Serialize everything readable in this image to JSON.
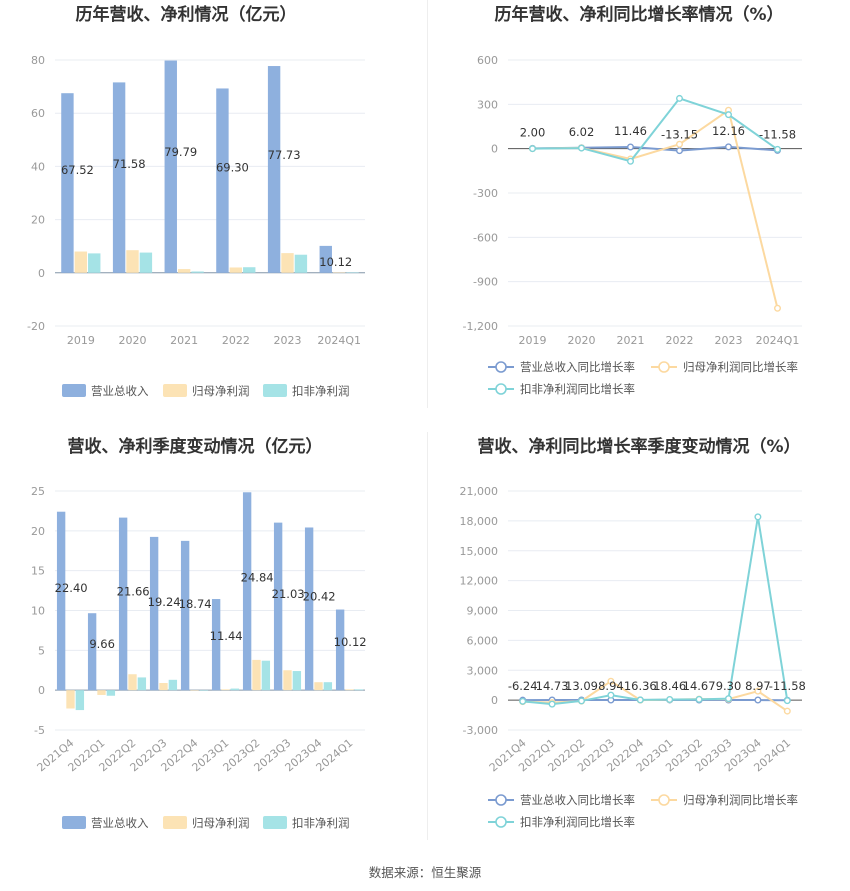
{
  "colors": {
    "revenue": "#8eb0de",
    "net_profit": "#fce3b5",
    "deducted_profit": "#a5e3e6",
    "line_revenue": "#7b9bd0",
    "line_net": "#fcd9a0",
    "line_deducted": "#7fd3d8"
  },
  "chart_data": [
    {
      "type": "bar",
      "title": "历年营收、净利情况（亿元）",
      "categories": [
        "2019",
        "2020",
        "2021",
        "2022",
        "2023",
        "2024Q1"
      ],
      "yticks": [
        "80",
        "60",
        "40",
        "20",
        "0",
        "-20"
      ],
      "ylim": [
        -20,
        80
      ],
      "series": [
        {
          "name": "营业总收入",
          "values": [
            67.52,
            71.58,
            79.79,
            69.3,
            77.73,
            10.12
          ],
          "labels": [
            "67.52",
            "71.58",
            "79.79",
            "69.30",
            "77.73",
            "10.12"
          ]
        },
        {
          "name": "归母净利润",
          "values": [
            8.0,
            8.5,
            1.4,
            2.0,
            7.4,
            0.1
          ]
        },
        {
          "name": "扣非净利润",
          "values": [
            7.3,
            7.6,
            0.5,
            2.1,
            6.8,
            0.1
          ]
        }
      ],
      "legend": "bottom"
    },
    {
      "type": "line",
      "title": "历年营收、净利同比增长率情况（%）",
      "categories": [
        "2019",
        "2020",
        "2021",
        "2022",
        "2023",
        "2024Q1"
      ],
      "yticks": [
        "600",
        "300",
        "0",
        "-300",
        "-600",
        "-900",
        "-1,200"
      ],
      "ylim": [
        -1200,
        600
      ],
      "series": [
        {
          "name": "营业总收入同比增长率",
          "values": [
            2.0,
            6.02,
            11.46,
            -13.15,
            12.16,
            -11.58
          ],
          "labels": [
            "2.00",
            "6.02",
            "11.46",
            "-13.15",
            "12.16",
            "-11.58"
          ]
        },
        {
          "name": "归母净利润同比增长率",
          "values": [
            0,
            5,
            -70,
            30,
            260,
            -1080
          ]
        },
        {
          "name": "扣非净利润同比增长率",
          "values": [
            0,
            4,
            -85,
            340,
            230,
            -5
          ]
        }
      ],
      "legend": "bottom"
    },
    {
      "type": "bar",
      "title": "营收、净利季度变动情况（亿元）",
      "categories": [
        "2021Q4",
        "2022Q1",
        "2022Q2",
        "2022Q3",
        "2022Q4",
        "2023Q1",
        "2023Q2",
        "2023Q3",
        "2023Q4",
        "2024Q1"
      ],
      "yticks": [
        "25",
        "20",
        "15",
        "10",
        "5",
        "0",
        "-5"
      ],
      "ylim": [
        -5,
        25
      ],
      "series": [
        {
          "name": "营业总收入",
          "values": [
            22.4,
            9.66,
            21.66,
            19.24,
            18.74,
            11.44,
            24.84,
            21.03,
            20.42,
            10.12
          ],
          "labels": [
            "22.40",
            "9.66",
            "21.66",
            "19.24",
            "18.74",
            "11.44",
            "24.84",
            "21.03",
            "20.42",
            "10.12"
          ]
        },
        {
          "name": "归母净利润",
          "values": [
            -2.3,
            -0.6,
            2.0,
            0.9,
            0.0,
            0.1,
            3.8,
            2.5,
            1.0,
            0.1
          ]
        },
        {
          "name": "扣非净利润",
          "values": [
            -2.5,
            -0.7,
            1.6,
            1.3,
            0.0,
            0.2,
            3.7,
            2.4,
            1.0,
            0.1
          ]
        }
      ],
      "legend": "bottom"
    },
    {
      "type": "line",
      "title": "营收、净利同比增长率季度变动情况（%）",
      "categories": [
        "2021Q4",
        "2022Q1",
        "2022Q2",
        "2022Q3",
        "2022Q4",
        "2023Q1",
        "2023Q2",
        "2023Q3",
        "2023Q4",
        "2024Q1"
      ],
      "yticks": [
        "21,000",
        "18,000",
        "15,000",
        "12,000",
        "9,000",
        "6,000",
        "3,000",
        "0",
        "-3,000"
      ],
      "ylim": [
        -3000,
        21000
      ],
      "series": [
        {
          "name": "营业总收入同比增长率",
          "values": [
            -6.24,
            14.73,
            13.09,
            8.94,
            16.36,
            18.46,
            14.67,
            9.3,
            8.97,
            -11.58
          ],
          "labels": [
            "-6.24",
            "14.73",
            "13.09",
            "8.94",
            "16.36",
            "18.46",
            "14.67",
            "9.30",
            "8.97",
            "-11.58"
          ]
        },
        {
          "name": "归母净利润同比增长率",
          "values": [
            -150,
            -250,
            -100,
            1900,
            0,
            50,
            100,
            100,
            900,
            -1100
          ]
        },
        {
          "name": "扣非净利润同比增长率",
          "values": [
            -120,
            -400,
            -80,
            500,
            20,
            60,
            80,
            150,
            18400,
            -50
          ]
        }
      ],
      "legend": "bottom"
    }
  ],
  "footer": "数据来源：恒生聚源"
}
